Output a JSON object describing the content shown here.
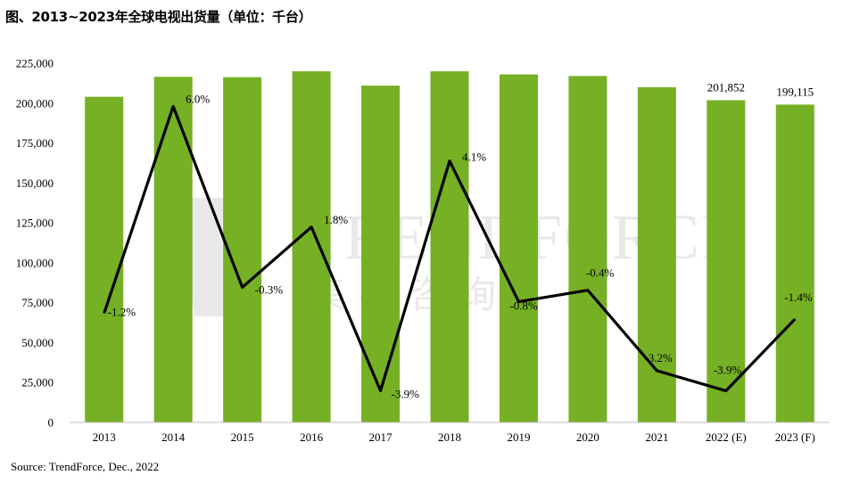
{
  "title": "图、2013~2023年全球电视出货量（单位：千台）",
  "source": "Source: TrendForce, Dec., 2022",
  "watermark": {
    "brand": "TRENDFORCE",
    "sub": "集邦咨询"
  },
  "colors": {
    "bar": "#76b025",
    "line": "#000000",
    "watermark": "#e9e9e9"
  },
  "chart_data": {
    "type": "bar",
    "categories": [
      "2013",
      "2014",
      "2015",
      "2016",
      "2017",
      "2018",
      "2019",
      "2020",
      "2021",
      "2022 (E)",
      "2023 (F)"
    ],
    "series": [
      {
        "values": [
          204000,
          216500,
          216300,
          220000,
          211000,
          220000,
          218000,
          217000,
          210000,
          201852,
          199115
        ]
      },
      {
        "type": "line",
        "values": [
          -1.2,
          6.0,
          -0.3,
          1.8,
          -3.9,
          4.1,
          -0.8,
          -0.4,
          -3.2,
          -3.9,
          -1.4
        ]
      }
    ],
    "bar_data_labels": [
      "",
      "",
      "",
      "",
      "",
      "",
      "",
      "",
      "",
      "201,852",
      "199,115"
    ],
    "line_data_labels": [
      "-1.2%",
      "6.0%",
      "-0.3%",
      "1.8%",
      "-3.9%",
      "4.1%",
      "-0.8%",
      "-0.4%",
      "-3.2%",
      "-3.9%",
      "-1.4%"
    ],
    "yticks": [
      "0",
      "25,000",
      "50,000",
      "75,000",
      "100,000",
      "125,000",
      "150,000",
      "175,000",
      "200,000",
      "225,000"
    ],
    "ylim": [
      0,
      225000
    ],
    "secondary_ylim": [
      -5.0,
      7.5
    ],
    "grid": false
  }
}
